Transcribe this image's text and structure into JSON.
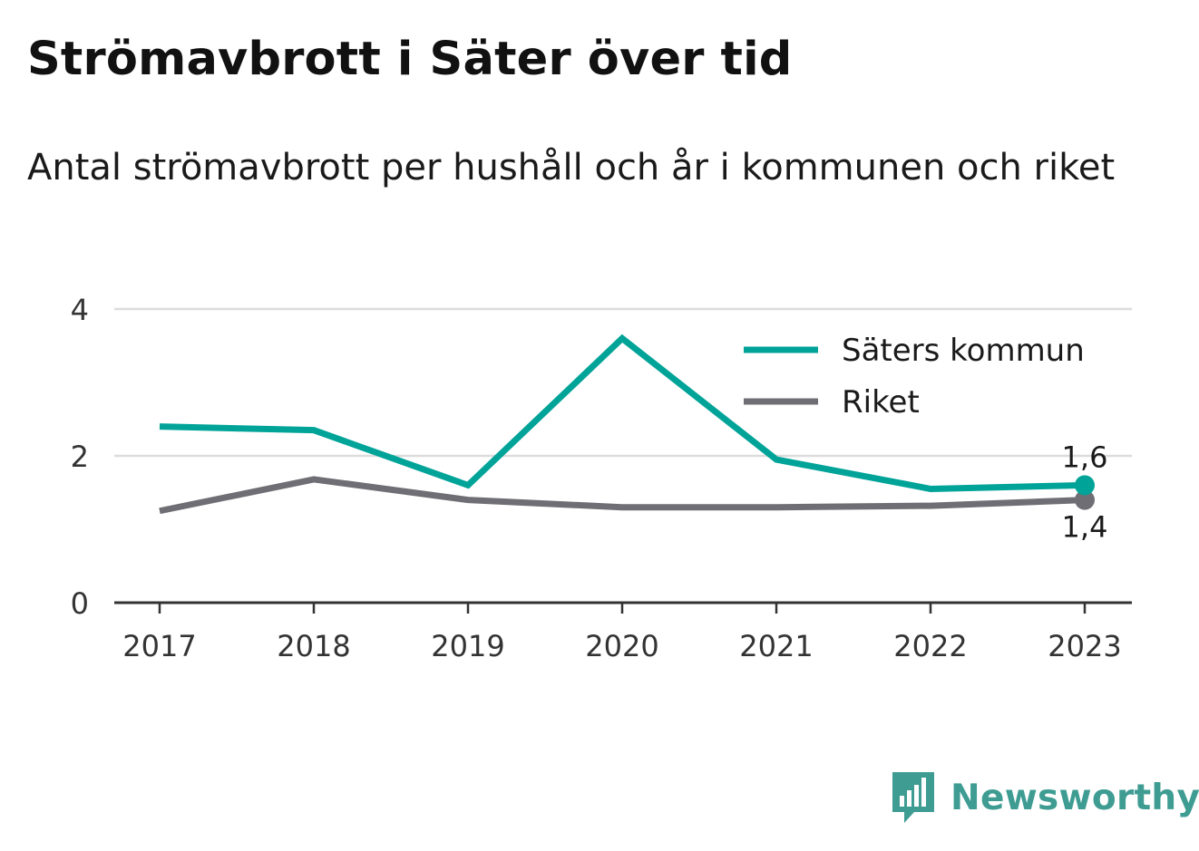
{
  "header": {
    "title": "Strömavbrott i Säter över tid",
    "subtitle": "Antal strömavbrott per hushåll och år i kommunen och riket"
  },
  "chart_data": {
    "type": "line",
    "x": [
      "2017",
      "2018",
      "2019",
      "2020",
      "2021",
      "2022",
      "2023"
    ],
    "ylim": [
      0,
      4
    ],
    "yticks": [
      "0",
      "2",
      "4"
    ],
    "grid": true,
    "legend_position": "top-right",
    "series": [
      {
        "name": "Säters kommun",
        "color": "#00a398",
        "values": [
          2.4,
          2.35,
          1.6,
          3.6,
          1.95,
          1.55,
          1.6
        ],
        "end_label": "1,6"
      },
      {
        "name": "Riket",
        "color": "#6e6e74",
        "values": [
          1.25,
          1.68,
          1.4,
          1.3,
          1.3,
          1.32,
          1.4
        ],
        "end_label": "1,4"
      }
    ]
  },
  "brand": {
    "name": "Newsworthy",
    "icon": "newsworthy-logo-icon",
    "color": "#3e9c92"
  }
}
